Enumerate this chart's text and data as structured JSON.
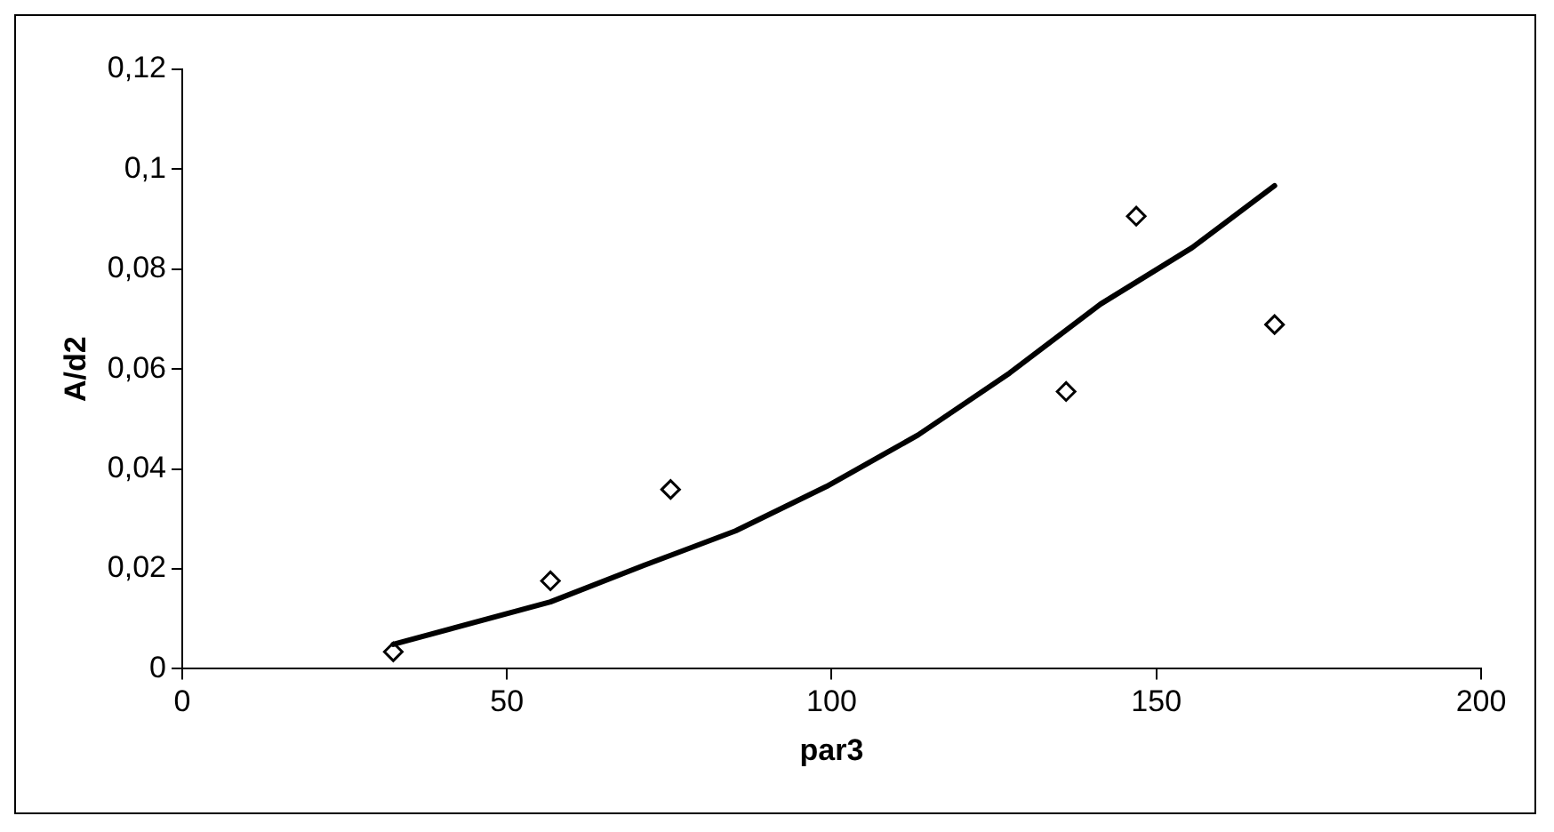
{
  "chart_data": {
    "type": "scatter",
    "xlabel": "par3",
    "ylabel": "A/d2",
    "xlim": [
      0,
      200
    ],
    "xticks": [
      0,
      50,
      100,
      150,
      200
    ],
    "ylim": [
      0,
      0.12
    ],
    "yticks": [
      {
        "value": 0,
        "label": "0"
      },
      {
        "value": 0.02,
        "label": "0,02"
      },
      {
        "value": 0.04,
        "label": "0,04"
      },
      {
        "value": 0.06,
        "label": "0,06"
      },
      {
        "value": 0.08,
        "label": "0,08"
      },
      {
        "value": 0.1,
        "label": "0,1"
      },
      {
        "value": 0.12,
        "label": "0,12"
      }
    ],
    "grid": false,
    "legend": false,
    "series": [
      {
        "marker": "diamond",
        "color": "#000000",
        "x": [
          32.5,
          56.7,
          75.2,
          136.1,
          146.9,
          168.2
        ],
        "values": [
          0.0034,
          0.0176,
          0.0359,
          0.0555,
          0.0906,
          0.0689
        ]
      },
      {
        "type": "line",
        "marker": "none",
        "color": "#000000",
        "line_style": "solid",
        "x": [
          32.5,
          56.7,
          71.1,
          85.2,
          99.2,
          113.3,
          127.4,
          141.4,
          155.5,
          168.2
        ],
        "values": [
          0.0049,
          0.0134,
          0.0207,
          0.0276,
          0.0365,
          0.0468,
          0.0592,
          0.073,
          0.0843,
          0.0967
        ]
      }
    ]
  }
}
